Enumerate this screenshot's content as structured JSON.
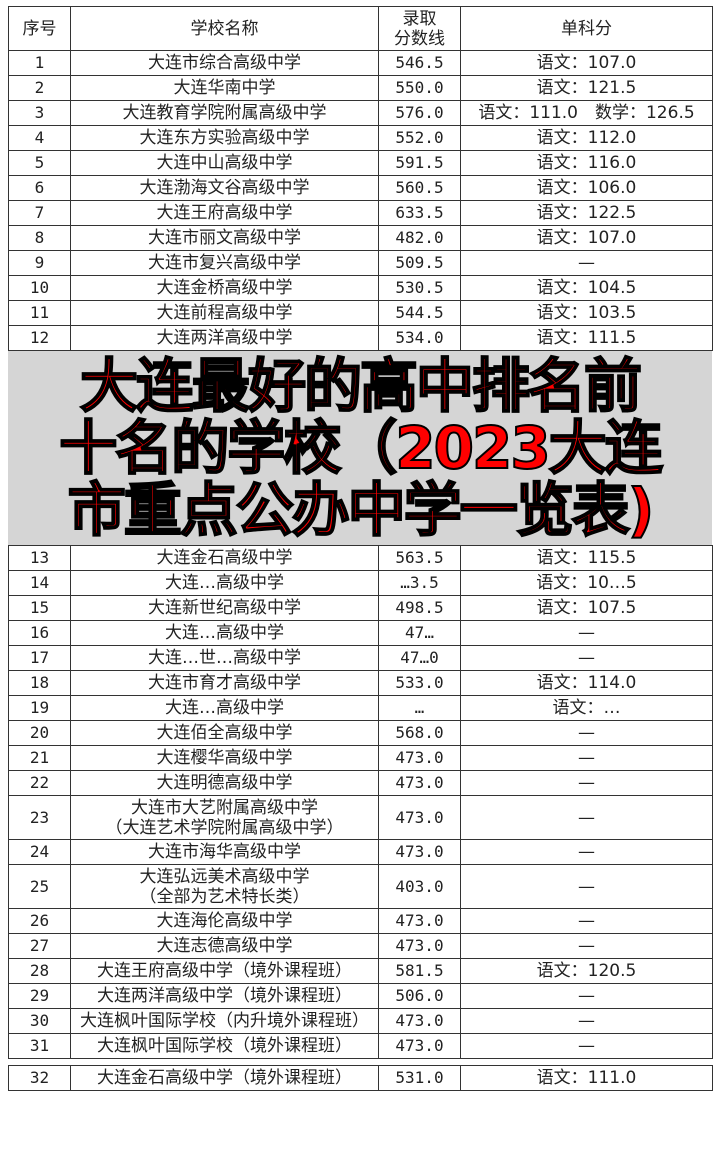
{
  "headers": {
    "no": "序号",
    "name": "学校名称",
    "score_l1": "录取",
    "score_l2": "分数线",
    "subject": "单科分"
  },
  "rows": [
    {
      "no": "1",
      "name": "大连市综合高级中学",
      "score": "546.5",
      "subject": "语文：107.0"
    },
    {
      "no": "2",
      "name": "大连华南中学",
      "score": "550.0",
      "subject": "语文：121.5"
    },
    {
      "no": "3",
      "name": "大连教育学院附属高级中学",
      "score": "576.0",
      "subject": "语文：111.0　数学：126.5"
    },
    {
      "no": "4",
      "name": "大连东方实验高级中学",
      "score": "552.0",
      "subject": "语文：112.0"
    },
    {
      "no": "5",
      "name": "大连中山高级中学",
      "score": "591.5",
      "subject": "语文：116.0"
    },
    {
      "no": "6",
      "name": "大连渤海文谷高级中学",
      "score": "560.5",
      "subject": "语文：106.0"
    },
    {
      "no": "7",
      "name": "大连王府高级中学",
      "score": "633.5",
      "subject": "语文：122.5"
    },
    {
      "no": "8",
      "name": "大连市丽文高级中学",
      "score": "482.0",
      "subject": "语文：107.0"
    },
    {
      "no": "9",
      "name": "大连市复兴高级中学",
      "score": "509.5",
      "subject": "—"
    },
    {
      "no": "10",
      "name": "大连金桥高级中学",
      "score": "530.5",
      "subject": "语文：104.5"
    },
    {
      "no": "11",
      "name": "大连前程高级中学",
      "score": "544.5",
      "subject": "语文：103.5"
    },
    {
      "no": "12",
      "name": "大连两洋高级中学",
      "score": "534.0",
      "subject": "语文：111.5"
    },
    {
      "no": "13",
      "name": "大连金石高级中学",
      "score": "563.5",
      "subject": "语文：115.5"
    },
    {
      "no": "14",
      "name": "大连…高级中学",
      "score": "…3.5",
      "subject": "语文：10…5"
    },
    {
      "no": "15",
      "name": "大连新世纪高级中学",
      "score": "498.5",
      "subject": "语文：107.5"
    },
    {
      "no": "16",
      "name": "大连…高级中学",
      "score": "47…",
      "subject": "—"
    },
    {
      "no": "17",
      "name": "大连…世…高级中学",
      "score": "47…0",
      "subject": "—"
    },
    {
      "no": "18",
      "name": "大连市育才高级中学",
      "score": "533.0",
      "subject": "语文：114.0"
    },
    {
      "no": "19",
      "name": "大连…高级中学",
      "score": "…",
      "subject": "语文：…"
    },
    {
      "no": "20",
      "name": "大连佰全高级中学",
      "score": "568.0",
      "subject": "—"
    },
    {
      "no": "21",
      "name": "大连樱华高级中学",
      "score": "473.0",
      "subject": "—"
    },
    {
      "no": "22",
      "name": "大连明德高级中学",
      "score": "473.0",
      "subject": "—"
    },
    {
      "no": "23",
      "name": "大连市大艺附属高级中学",
      "name2": "（大连艺术学院附属高级中学）",
      "score": "473.0",
      "subject": "—"
    },
    {
      "no": "24",
      "name": "大连市海华高级中学",
      "score": "473.0",
      "subject": "—"
    },
    {
      "no": "25",
      "name": "大连弘远美术高级中学",
      "name2": "（全部为艺术特长类）",
      "score": "403.0",
      "subject": "—"
    },
    {
      "no": "26",
      "name": "大连海伦高级中学",
      "score": "473.0",
      "subject": "—"
    },
    {
      "no": "27",
      "name": "大连志德高级中学",
      "score": "473.0",
      "subject": "—"
    },
    {
      "no": "28",
      "name": "大连王府高级中学（境外课程班）",
      "score": "581.5",
      "subject": "语文：120.5"
    },
    {
      "no": "29",
      "name": "大连两洋高级中学（境外课程班）",
      "score": "506.0",
      "subject": "—"
    },
    {
      "no": "30",
      "name": "大连枫叶国际学校（内升境外课程班）",
      "score": "473.0",
      "subject": "—"
    },
    {
      "no": "31",
      "name": "大连枫叶国际学校（境外课程班）",
      "score": "473.0",
      "subject": "—"
    },
    {
      "no": "32",
      "name": "大连金石高级中学（境外课程班）",
      "score": "531.0",
      "subject": "语文：111.0"
    }
  ],
  "overlay_title": [
    "大连最好的高中排名前",
    "十名的学校（2023大连",
    "市重点公办中学一览表)"
  ]
}
